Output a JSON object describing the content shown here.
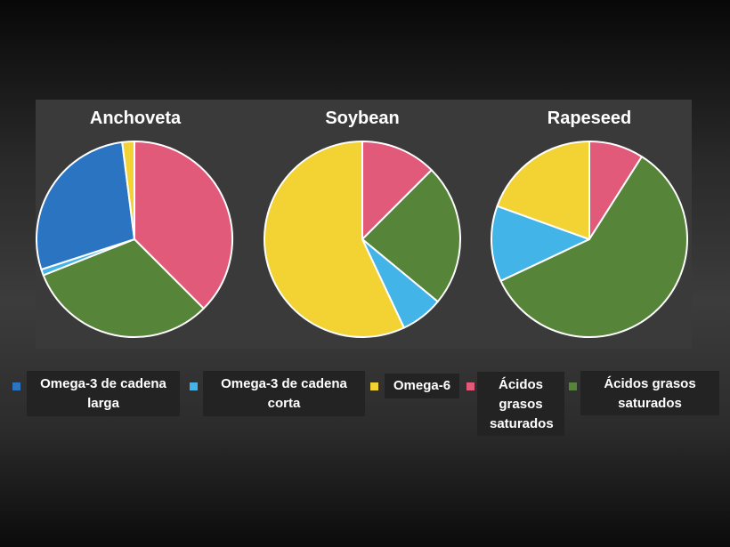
{
  "legend": [
    {
      "label": "Omega-3 de cadena larga",
      "color": "#2b74c2"
    },
    {
      "label": "Omega-3 de cadena corta",
      "color": "#43b4e8"
    },
    {
      "label": "Omega-6",
      "color": "#f3d233"
    },
    {
      "label": "Ácidos grasos saturados",
      "color": "#e15a7a"
    },
    {
      "label": "Ácidos grasos saturados",
      "color": "#568439"
    }
  ],
  "chart_data": [
    {
      "type": "pie",
      "title": "Anchoveta",
      "slices": [
        {
          "name": "Ácidos grasos saturados",
          "value": 37.5,
          "color": "#e15a7a"
        },
        {
          "name": "Ácidos grasos saturados",
          "value": 31.5,
          "color": "#568439"
        },
        {
          "name": "Omega-3 de cadena corta",
          "value": 1.0,
          "color": "#43b4e8"
        },
        {
          "name": "Omega-3 de cadena larga",
          "value": 28.0,
          "color": "#2b74c2"
        },
        {
          "name": "Omega-6",
          "value": 2.0,
          "color": "#f3d233"
        }
      ]
    },
    {
      "type": "pie",
      "title": "Soybean",
      "slices": [
        {
          "name": "Ácidos grasos saturados",
          "value": 12.5,
          "color": "#e15a7a"
        },
        {
          "name": "Ácidos grasos saturados",
          "value": 23.5,
          "color": "#568439"
        },
        {
          "name": "Omega-3 de cadena corta",
          "value": 7.0,
          "color": "#43b4e8"
        },
        {
          "name": "Omega-6",
          "value": 57.0,
          "color": "#f3d233"
        }
      ]
    },
    {
      "type": "pie",
      "title": "Rapeseed",
      "slices": [
        {
          "name": "Ácidos grasos saturados",
          "value": 9.0,
          "color": "#e15a7a"
        },
        {
          "name": "Ácidos grasos saturados",
          "value": 59.0,
          "color": "#568439"
        },
        {
          "name": "Omega-3 de cadena corta",
          "value": 12.5,
          "color": "#43b4e8"
        },
        {
          "name": "Omega-6",
          "value": 19.5,
          "color": "#f3d233"
        }
      ]
    }
  ]
}
